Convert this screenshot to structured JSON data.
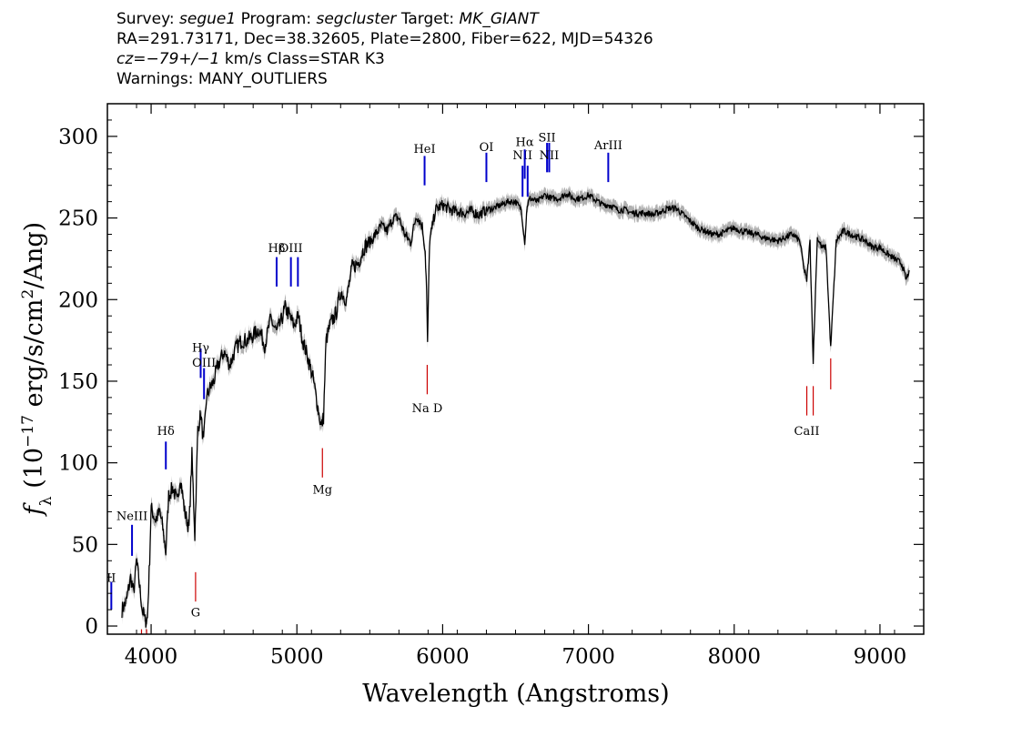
{
  "header": {
    "line1": {
      "survey_label": "Survey:",
      "survey": "segue1",
      "program_label": "Program:",
      "program": "segcluster",
      "target_label": "Target:",
      "target": "MK_GIANT"
    },
    "line2": "RA=291.73171, Dec=38.32605, Plate=2800, Fiber=622, MJD=54326",
    "line3": {
      "cz": "cz=−79+/−1",
      "rest": "km/s  Class=STAR K3"
    },
    "line4": "Warnings: MANY_OUTLIERS"
  },
  "chart_data": {
    "type": "line",
    "xlabel": "Wavelength (Angstroms)",
    "ylabel": "fλ (10⁻¹⁷ erg/s/cm²/Ang)",
    "xlim": [
      3700,
      9300
    ],
    "ylim": [
      -5,
      320
    ],
    "xticks": [
      4000,
      5000,
      6000,
      7000,
      8000,
      9000
    ],
    "yticks": [
      0,
      50,
      100,
      150,
      200,
      250,
      300
    ],
    "grid": false,
    "colors": {
      "spectrum": "#000000",
      "error_band": "#b0b0b0",
      "emission_lines": "#0000cc",
      "absorption_lines": "#cc0000"
    },
    "series": [
      {
        "x": [
          3800,
          3830,
          3860,
          3880,
          3900,
          3920,
          3940,
          3960,
          3975,
          3990,
          4000,
          4030,
          4060,
          4080,
          4101,
          4120,
          4150,
          4180,
          4200,
          4230,
          4260,
          4280,
          4300,
          4320,
          4340,
          4360,
          4380,
          4400,
          4430,
          4460,
          4500,
          4540,
          4580,
          4620,
          4660,
          4700,
          4740,
          4780,
          4820,
          4861,
          4890,
          4920,
          4950,
          4980,
          5010,
          5040,
          5080,
          5110,
          5140,
          5167,
          5183,
          5200,
          5230,
          5270,
          5300,
          5340,
          5380,
          5420,
          5460,
          5500,
          5540,
          5580,
          5620,
          5660,
          5700,
          5740,
          5780,
          5820,
          5860,
          5880,
          5890,
          5896,
          5910,
          5950,
          6000,
          6050,
          6100,
          6150,
          6200,
          6250,
          6300,
          6350,
          6400,
          6450,
          6500,
          6540,
          6563,
          6580,
          6600,
          6650,
          6700,
          6750,
          6800,
          6850,
          6900,
          6950,
          7000,
          7050,
          7100,
          7150,
          7200,
          7250,
          7300,
          7350,
          7400,
          7450,
          7500,
          7550,
          7600,
          7650,
          7700,
          7750,
          7800,
          7850,
          7900,
          7950,
          8000,
          8050,
          8100,
          8150,
          8200,
          8250,
          8300,
          8350,
          8400,
          8450,
          8480,
          8498,
          8520,
          8542,
          8570,
          8600,
          8630,
          8662,
          8700,
          8750,
          8800,
          8850,
          8900,
          8950,
          9000,
          9050,
          9100,
          9150,
          9180,
          9200
        ],
        "y": [
          10,
          15,
          30,
          20,
          40,
          25,
          10,
          3,
          5,
          42,
          72,
          65,
          70,
          60,
          45,
          80,
          85,
          75,
          92,
          70,
          60,
          105,
          55,
          120,
          130,
          112,
          140,
          145,
          150,
          160,
          168,
          160,
          170,
          175,
          175,
          178,
          182,
          172,
          188,
          180,
          186,
          195,
          190,
          184,
          190,
          175,
          163,
          152,
          136,
          122,
          128,
          175,
          185,
          192,
          205,
          200,
          220,
          222,
          232,
          235,
          240,
          245,
          242,
          250,
          250,
          240,
          235,
          252,
          245,
          230,
          205,
          172,
          235,
          255,
          258,
          255,
          254,
          253,
          254,
          252,
          255,
          256,
          258,
          260,
          260,
          255,
          235,
          258,
          262,
          260,
          264,
          262,
          262,
          265,
          262,
          262,
          264,
          261,
          258,
          258,
          255,
          255,
          253,
          253,
          253,
          252,
          254,
          256,
          256,
          252,
          248,
          244,
          242,
          240,
          240,
          242,
          244,
          242,
          241,
          240,
          238,
          237,
          236,
          238,
          240,
          236,
          218,
          212,
          236,
          162,
          238,
          232,
          232,
          170,
          236,
          242,
          240,
          238,
          236,
          232,
          232,
          228,
          225,
          222,
          212,
          218
        ],
        "err": 3
      }
    ],
    "line_markers": [
      {
        "label": "OII",
        "wavelength": 3727,
        "color": "blue",
        "label_y": 27,
        "y0": 10,
        "y1": 27,
        "shown": "II"
      },
      {
        "label": "NeIII",
        "wavelength": 3869,
        "color": "blue",
        "label_y": 65,
        "y0": 43,
        "y1": 62
      },
      {
        "label": "Hδ",
        "wavelength": 4101,
        "color": "blue",
        "label_y": 117,
        "y0": 96,
        "y1": 113
      },
      {
        "label": "Hγ",
        "wavelength": 4340,
        "color": "blue",
        "label_y": 168,
        "y0": 152,
        "y1": 170
      },
      {
        "label": "OIII",
        "wavelength": 4363,
        "color": "blue",
        "label_y": 159,
        "y0": 139,
        "y1": 158
      },
      {
        "label": "Hβ",
        "wavelength": 4861,
        "color": "blue",
        "label_y": 229,
        "y0": 208,
        "y1": 226
      },
      {
        "label": "OIII",
        "wavelength": 4959,
        "color": "blue",
        "label_y": 229,
        "y0": 208,
        "y1": 226
      },
      {
        "label": "",
        "wavelength": 5007,
        "color": "blue",
        "y0": 208,
        "y1": 226
      },
      {
        "label": "HeI",
        "wavelength": 5876,
        "color": "blue",
        "label_y": 290,
        "y0": 270,
        "y1": 288
      },
      {
        "label": "OI",
        "wavelength": 6300,
        "color": "blue",
        "label_y": 291,
        "y0": 272,
        "y1": 290
      },
      {
        "label": "NII",
        "wavelength": 6548,
        "color": "blue",
        "label_y": 286,
        "y0": 263,
        "y1": 282
      },
      {
        "label": "Hα",
        "wavelength": 6563,
        "color": "blue",
        "label_y": 294,
        "y0": 274,
        "y1": 292
      },
      {
        "label": "",
        "wavelength": 6583,
        "color": "blue",
        "y0": 263,
        "y1": 282
      },
      {
        "label": "SII",
        "wavelength": 6716,
        "color": "blue",
        "label_y": 297,
        "y0": 278,
        "y1": 296
      },
      {
        "label": "NII",
        "wavelength": 6731,
        "color": "blue",
        "label_y": 286,
        "y0": 278,
        "y1": 296
      },
      {
        "label": "ArIII",
        "wavelength": 7136,
        "color": "blue",
        "label_y": 292,
        "y0": 272,
        "y1": 290
      },
      {
        "label": "",
        "wavelength": 3934,
        "color": "red",
        "y0": -5,
        "y1": -2
      },
      {
        "label": "",
        "wavelength": 3969,
        "color": "red",
        "y0": -5,
        "y1": -2
      },
      {
        "label": "G",
        "wavelength": 4305,
        "color": "red",
        "label_y": 6,
        "y0": 15,
        "y1": 33
      },
      {
        "label": "Mg",
        "wavelength": 5175,
        "color": "red",
        "label_y": 81,
        "y0": 91,
        "y1": 109
      },
      {
        "label": "Na D",
        "wavelength": 5894,
        "color": "red",
        "label_y": 131,
        "y0": 142,
        "y1": 160
      },
      {
        "label": "CaII",
        "wavelength": 8498,
        "color": "red",
        "label_y": 117,
        "y0": 129,
        "y1": 147
      },
      {
        "label": "",
        "wavelength": 8542,
        "color": "red",
        "y0": 129,
        "y1": 147
      },
      {
        "label": "",
        "wavelength": 8662,
        "color": "red",
        "y0": 145,
        "y1": 164
      }
    ]
  }
}
